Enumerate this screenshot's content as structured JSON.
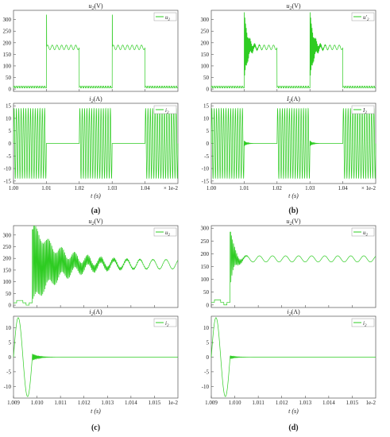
{
  "chart_data": [
    {
      "type": "line",
      "panel": "(a)",
      "subplots": [
        {
          "title": "u2(V)",
          "title_main": "u",
          "title_sub": "2",
          "title_unit": "(V)",
          "legend": "u2",
          "legend_main": "u",
          "legend_sub": "2",
          "legend_placement": "top-right",
          "ylim": [
            -10,
            340
          ],
          "yticks": [
            0,
            50,
            100,
            150,
            200,
            250,
            300
          ],
          "waveform": {
            "kind": "switching_voltage",
            "on_level": 180,
            "ripple": 10,
            "off_level": 5,
            "spike": 320,
            "transient": "fast"
          }
        },
        {
          "title": "i2(A)",
          "title_main": "i",
          "title_sub": "2",
          "title_unit": "(A)",
          "legend": "i2",
          "legend_main": "i",
          "legend_sub": "2",
          "legend_placement": "top-right",
          "ylim": [
            -16,
            16
          ],
          "yticks": [
            -15,
            -10,
            -5,
            0,
            5,
            10,
            15
          ],
          "waveform": {
            "kind": "switching_current",
            "amplitude": 14,
            "cycles_per_interval": 14,
            "ringing": false
          }
        }
      ],
      "x": {
        "xlim": [
          1.0,
          1.05
        ],
        "xticks": [
          1.0,
          1.01,
          1.02,
          1.03,
          1.04
        ],
        "ticklabels": [
          "1.00",
          "1.01",
          "1.02",
          "1.03",
          "1.04"
        ],
        "scale_note": "× 1e-2",
        "label": "t (s)",
        "on_intervals": [
          [
            1.0,
            1.01
          ],
          [
            1.02,
            1.03
          ],
          [
            1.04,
            1.05
          ]
        ]
      }
    },
    {
      "type": "line",
      "panel": "(b)",
      "subplots": [
        {
          "title": "u2(V)",
          "title_main": "u",
          "title_sub": "2",
          "title_unit": "(V)",
          "legend": "u'2",
          "legend_main": "u'",
          "legend_sub": "2",
          "legend_placement": "top-right",
          "ylim": [
            -10,
            340
          ],
          "yticks": [
            0,
            50,
            100,
            150,
            200,
            250,
            300
          ],
          "waveform": {
            "kind": "switching_voltage",
            "on_level": 180,
            "ripple": 10,
            "off_level": 5,
            "spike": 330,
            "transient": "ringing"
          }
        },
        {
          "title": "I2(A)",
          "title_main": "I",
          "title_sub": "2",
          "title_unit": "(A)",
          "legend": "I2",
          "legend_main": "I",
          "legend_sub": "2",
          "legend_placement": "top-right",
          "ylim": [
            -16,
            16
          ],
          "yticks": [
            -15,
            -10,
            -5,
            0,
            5,
            10,
            15
          ],
          "waveform": {
            "kind": "switching_current",
            "amplitude": 14,
            "cycles_per_interval": 14,
            "ringing": true
          }
        }
      ],
      "x": {
        "xlim": [
          1.0,
          1.05
        ],
        "xticks": [
          1.0,
          1.01,
          1.02,
          1.03,
          1.04
        ],
        "ticklabels": [
          "1.00",
          "1.01",
          "1.02",
          "1.03",
          "1.04"
        ],
        "scale_note": "× 1e-2",
        "label": "t (s)",
        "on_intervals": [
          [
            1.0,
            1.01
          ],
          [
            1.02,
            1.03
          ],
          [
            1.04,
            1.05
          ]
        ]
      }
    },
    {
      "type": "line",
      "panel": "(c)",
      "subplots": [
        {
          "title": "u2(V)",
          "title_main": "u",
          "title_sub": "2",
          "title_unit": "(V)",
          "legend": "u2",
          "legend_main": "u",
          "legend_sub": "2",
          "legend_placement": "top-right",
          "ylim": [
            -10,
            340
          ],
          "yticks": [
            0,
            50,
            100,
            150,
            200,
            250,
            300
          ],
          "waveform": {
            "kind": "zoom_voltage",
            "step_levels": [
              10,
              20,
              20,
              10,
              0,
              10
            ],
            "turnoff_time": 1.0098,
            "spike": 340,
            "settle_level": 175,
            "ripple": 20,
            "decay": "slow"
          }
        },
        {
          "title": "i2(A)",
          "title_main": "i",
          "title_sub": "2",
          "title_unit": "(A)",
          "legend": "i2",
          "legend_main": "i",
          "legend_sub": "2",
          "legend_placement": "top-right",
          "ylim": [
            -14,
            14
          ],
          "yticks": [
            -10,
            -5,
            0,
            5,
            10
          ],
          "waveform": {
            "kind": "zoom_current",
            "peak": 13.5,
            "trough": -13.5,
            "turnoff_time": 1.0098,
            "ringing": 1.2
          }
        }
      ],
      "x": {
        "xlim": [
          1.009,
          1.016
        ],
        "xticks": [
          1.009,
          1.01,
          1.011,
          1.012,
          1.013,
          1.014,
          1.015
        ],
        "ticklabels": [
          "1.009",
          "1.010",
          "1.011",
          "1.012",
          "1.013",
          "1.014",
          "1.015"
        ],
        "scale_note": "1e-2",
        "label": "t (s)"
      }
    },
    {
      "type": "line",
      "panel": "(d)",
      "subplots": [
        {
          "title": "u2(V)",
          "title_main": "u",
          "title_sub": "2",
          "title_unit": "(V)",
          "legend": "u2",
          "legend_main": "u",
          "legend_sub": "2",
          "legend_placement": "top-right",
          "ylim": [
            -10,
            310
          ],
          "yticks": [
            0,
            50,
            100,
            150,
            200,
            250,
            300
          ],
          "waveform": {
            "kind": "zoom_voltage",
            "step_levels": [
              10,
              20,
              20,
              10,
              0,
              10
            ],
            "turnoff_time": 1.0098,
            "spike": 300,
            "settle_level": 180,
            "ripple": 12,
            "decay": "fast"
          }
        },
        {
          "title": "i2(A)",
          "title_main": "i",
          "title_sub": "2",
          "title_unit": "(A)",
          "legend": "i2",
          "legend_main": "i",
          "legend_sub": "2",
          "legend_placement": "top-right",
          "ylim": [
            -14,
            14
          ],
          "yticks": [
            -10,
            -5,
            0,
            5,
            10
          ],
          "waveform": {
            "kind": "zoom_current",
            "peak": 13.5,
            "trough": -13.5,
            "turnoff_time": 1.0098,
            "ringing": 0.5
          }
        }
      ],
      "x": {
        "xlim": [
          1.009,
          1.016
        ],
        "xticks": [
          1.009,
          1.01,
          1.011,
          1.012,
          1.013,
          1.014,
          1.015
        ],
        "ticklabels": [
          "1.009",
          "1.010",
          "1.011",
          "1.012",
          "1.013",
          "1.014",
          "1.015"
        ],
        "scale_note": "1e-2",
        "label": "t (s)"
      }
    }
  ],
  "colors": {
    "trace": "#2ecc22",
    "axis": "#555555",
    "grid": "#dddddd",
    "text": "#222222"
  }
}
